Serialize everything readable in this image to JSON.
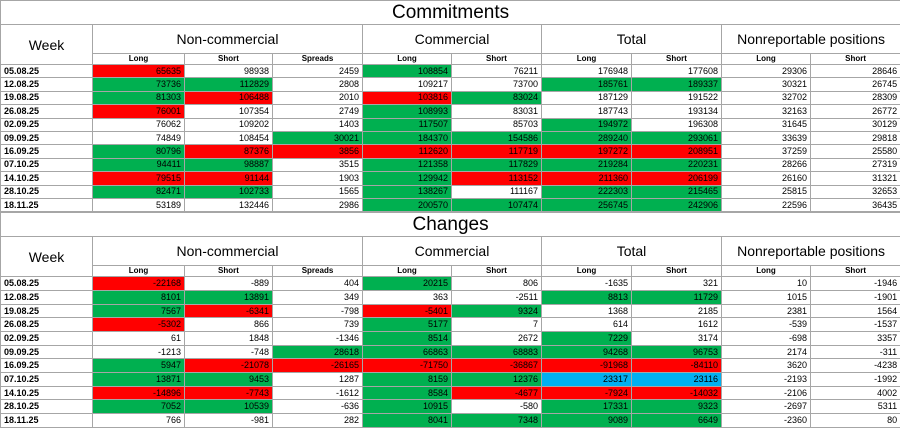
{
  "tables": [
    {
      "title": "Commitments",
      "week_header": "Week",
      "groups": [
        {
          "label": "Non-commercial",
          "columns": [
            "Long",
            "Short",
            "Spreads"
          ]
        },
        {
          "label": "Commercial",
          "columns": [
            "Long",
            "Short"
          ]
        },
        {
          "label": "Total",
          "columns": [
            "Long",
            "Short"
          ]
        },
        {
          "label": "Nonreportable positions",
          "columns": [
            "Long",
            "Short"
          ]
        }
      ],
      "rows": [
        {
          "week": "05.08.25",
          "values": [
            65635,
            98938,
            2459,
            108854,
            76211,
            176948,
            177608,
            29306,
            28646
          ],
          "fills": [
            "#ff0000",
            "#ffffff",
            "#ffffff",
            "#00b050",
            "#ffffff",
            "#ffffff",
            "#ffffff",
            "#ffffff",
            "#ffffff"
          ]
        },
        {
          "week": "12.08.25",
          "values": [
            73736,
            112829,
            2808,
            109217,
            73700,
            185761,
            189337,
            30321,
            26745
          ],
          "fills": [
            "#00b050",
            "#00b050",
            "#ffffff",
            "#ffffff",
            "#ffffff",
            "#00b050",
            "#00b050",
            "#ffffff",
            "#ffffff"
          ]
        },
        {
          "week": "19.08.25",
          "values": [
            81303,
            106488,
            2010,
            103816,
            83024,
            187129,
            191522,
            32702,
            28309
          ],
          "fills": [
            "#00b050",
            "#ff0000",
            "#ffffff",
            "#ff0000",
            "#00b050",
            "#ffffff",
            "#ffffff",
            "#ffffff",
            "#ffffff"
          ]
        },
        {
          "week": "26.08.25",
          "values": [
            76001,
            107354,
            2749,
            108993,
            83031,
            187743,
            193134,
            32163,
            26772
          ],
          "fills": [
            "#ff0000",
            "#ffffff",
            "#ffffff",
            "#00b050",
            "#ffffff",
            "#ffffff",
            "#ffffff",
            "#ffffff",
            "#ffffff"
          ]
        },
        {
          "week": "02.09.25",
          "values": [
            76062,
            109202,
            1403,
            117507,
            85703,
            194972,
            196308,
            31645,
            30129
          ],
          "fills": [
            "#ffffff",
            "#ffffff",
            "#ffffff",
            "#00b050",
            "#ffffff",
            "#00b050",
            "#ffffff",
            "#ffffff",
            "#ffffff"
          ]
        },
        {
          "week": "09.09.25",
          "values": [
            74849,
            108454,
            30021,
            184370,
            154586,
            289240,
            293061,
            33639,
            29818
          ],
          "fills": [
            "#ffffff",
            "#ffffff",
            "#00b050",
            "#00b050",
            "#00b050",
            "#00b050",
            "#00b050",
            "#ffffff",
            "#ffffff"
          ]
        },
        {
          "week": "16.09.25",
          "values": [
            80796,
            87376,
            3856,
            112620,
            117719,
            197272,
            208951,
            37259,
            25580
          ],
          "fills": [
            "#00b050",
            "#ff0000",
            "#ff0000",
            "#ff0000",
            "#ff0000",
            "#ff0000",
            "#ff0000",
            "#ffffff",
            "#ffffff"
          ]
        },
        {
          "week": "07.10.25",
          "values": [
            94411,
            98887,
            3515,
            121358,
            117829,
            219284,
            220231,
            28266,
            27319
          ],
          "fills": [
            "#00b050",
            "#00b050",
            "#ffffff",
            "#00b050",
            "#00b050",
            "#00b050",
            "#00b050",
            "#ffffff",
            "#ffffff"
          ]
        },
        {
          "week": "14.10.25",
          "values": [
            79515,
            91144,
            1903,
            129942,
            113152,
            211360,
            206199,
            26160,
            31321
          ],
          "fills": [
            "#ff0000",
            "#ff0000",
            "#ffffff",
            "#00b050",
            "#ff0000",
            "#ff0000",
            "#ff0000",
            "#ffffff",
            "#ffffff"
          ]
        },
        {
          "week": "28.10.25",
          "values": [
            82471,
            102733,
            1565,
            138267,
            111167,
            222303,
            215465,
            25815,
            32653
          ],
          "fills": [
            "#00b050",
            "#00b050",
            "#ffffff",
            "#00b050",
            "#ffffff",
            "#00b050",
            "#00b050",
            "#ffffff",
            "#ffffff"
          ]
        },
        {
          "week": "18.11.25",
          "values": [
            53189,
            132446,
            2986,
            200570,
            107474,
            256745,
            242906,
            22596,
            36435
          ],
          "fills": [
            "#ffffff",
            "#ffffff",
            "#ffffff",
            "#00b050",
            "#00b050",
            "#00b050",
            "#00b050",
            "#ffffff",
            "#ffffff"
          ]
        }
      ]
    },
    {
      "title": "Changes",
      "week_header": "Week",
      "groups": [
        {
          "label": "Non-commercial",
          "columns": [
            "Long",
            "Short",
            "Spreads"
          ]
        },
        {
          "label": "Commercial",
          "columns": [
            "Long",
            "Short"
          ]
        },
        {
          "label": "Total",
          "columns": [
            "Long",
            "Short"
          ]
        },
        {
          "label": "Nonreportable positions",
          "columns": [
            "Long",
            "Short"
          ]
        }
      ],
      "rows": [
        {
          "week": "05.08.25",
          "values": [
            -22168,
            -889,
            404,
            20215,
            806,
            -1635,
            321,
            10,
            -1946
          ],
          "fills": [
            "#ff0000",
            "#ffffff",
            "#ffffff",
            "#00b050",
            "#ffffff",
            "#ffffff",
            "#ffffff",
            "#ffffff",
            "#ffffff"
          ]
        },
        {
          "week": "12.08.25",
          "values": [
            8101,
            13891,
            349,
            363,
            -2511,
            8813,
            11729,
            1015,
            -1901
          ],
          "fills": [
            "#00b050",
            "#00b050",
            "#ffffff",
            "#ffffff",
            "#ffffff",
            "#00b050",
            "#00b050",
            "#ffffff",
            "#ffffff"
          ]
        },
        {
          "week": "19.08.25",
          "values": [
            7567,
            -6341,
            -798,
            -5401,
            9324,
            1368,
            2185,
            2381,
            1564
          ],
          "fills": [
            "#00b050",
            "#ff0000",
            "#ffffff",
            "#ff0000",
            "#00b050",
            "#ffffff",
            "#ffffff",
            "#ffffff",
            "#ffffff"
          ]
        },
        {
          "week": "26.08.25",
          "values": [
            -5302,
            866,
            739,
            5177,
            7,
            614,
            1612,
            -539,
            -1537
          ],
          "fills": [
            "#ff0000",
            "#ffffff",
            "#ffffff",
            "#00b050",
            "#ffffff",
            "#ffffff",
            "#ffffff",
            "#ffffff",
            "#ffffff"
          ]
        },
        {
          "week": "02.09.25",
          "values": [
            61,
            1848,
            -1346,
            8514,
            2672,
            7229,
            3174,
            -698,
            3357
          ],
          "fills": [
            "#ffffff",
            "#ffffff",
            "#ffffff",
            "#00b050",
            "#ffffff",
            "#00b050",
            "#ffffff",
            "#ffffff",
            "#ffffff"
          ]
        },
        {
          "week": "09.09.25",
          "values": [
            -1213,
            -748,
            28618,
            66863,
            68883,
            94268,
            96753,
            2174,
            -311
          ],
          "fills": [
            "#ffffff",
            "#ffffff",
            "#00b050",
            "#00b050",
            "#00b050",
            "#00b050",
            "#00b050",
            "#ffffff",
            "#ffffff"
          ]
        },
        {
          "week": "16.09.25",
          "values": [
            5947,
            -21078,
            -26165,
            -71750,
            -36867,
            -91968,
            -84110,
            3620,
            -4238
          ],
          "fills": [
            "#00b050",
            "#ff0000",
            "#ff0000",
            "#ff0000",
            "#ff0000",
            "#ff0000",
            "#ff0000",
            "#ffffff",
            "#ffffff"
          ]
        },
        {
          "week": "07.10.25",
          "values": [
            13871,
            9453,
            1287,
            8159,
            12376,
            23317,
            23116,
            -2193,
            -1992
          ],
          "fills": [
            "#00b050",
            "#00b050",
            "#ffffff",
            "#00b050",
            "#00b050",
            "#00b0f0",
            "#00b0f0",
            "#ffffff",
            "#ffffff"
          ]
        },
        {
          "week": "14.10.25",
          "values": [
            -14896,
            -7743,
            -1612,
            8584,
            -4677,
            -7924,
            -14032,
            -2106,
            4002
          ],
          "fills": [
            "#ff0000",
            "#ff0000",
            "#ffffff",
            "#00b050",
            "#ff0000",
            "#ff0000",
            "#ff0000",
            "#ffffff",
            "#ffffff"
          ]
        },
        {
          "week": "28.10.25",
          "values": [
            7052,
            10539,
            -636,
            10915,
            -580,
            17331,
            9323,
            -2697,
            5311
          ],
          "fills": [
            "#00b050",
            "#00b050",
            "#ffffff",
            "#00b050",
            "#ffffff",
            "#00b050",
            "#00b050",
            "#ffffff",
            "#ffffff"
          ]
        },
        {
          "week": "18.11.25",
          "values": [
            766,
            -981,
            282,
            8041,
            7348,
            9089,
            6649,
            -2360,
            80
          ],
          "fills": [
            "#ffffff",
            "#ffffff",
            "#ffffff",
            "#00b050",
            "#00b050",
            "#00b050",
            "#00b050",
            "#ffffff",
            "#ffffff"
          ]
        }
      ]
    }
  ]
}
